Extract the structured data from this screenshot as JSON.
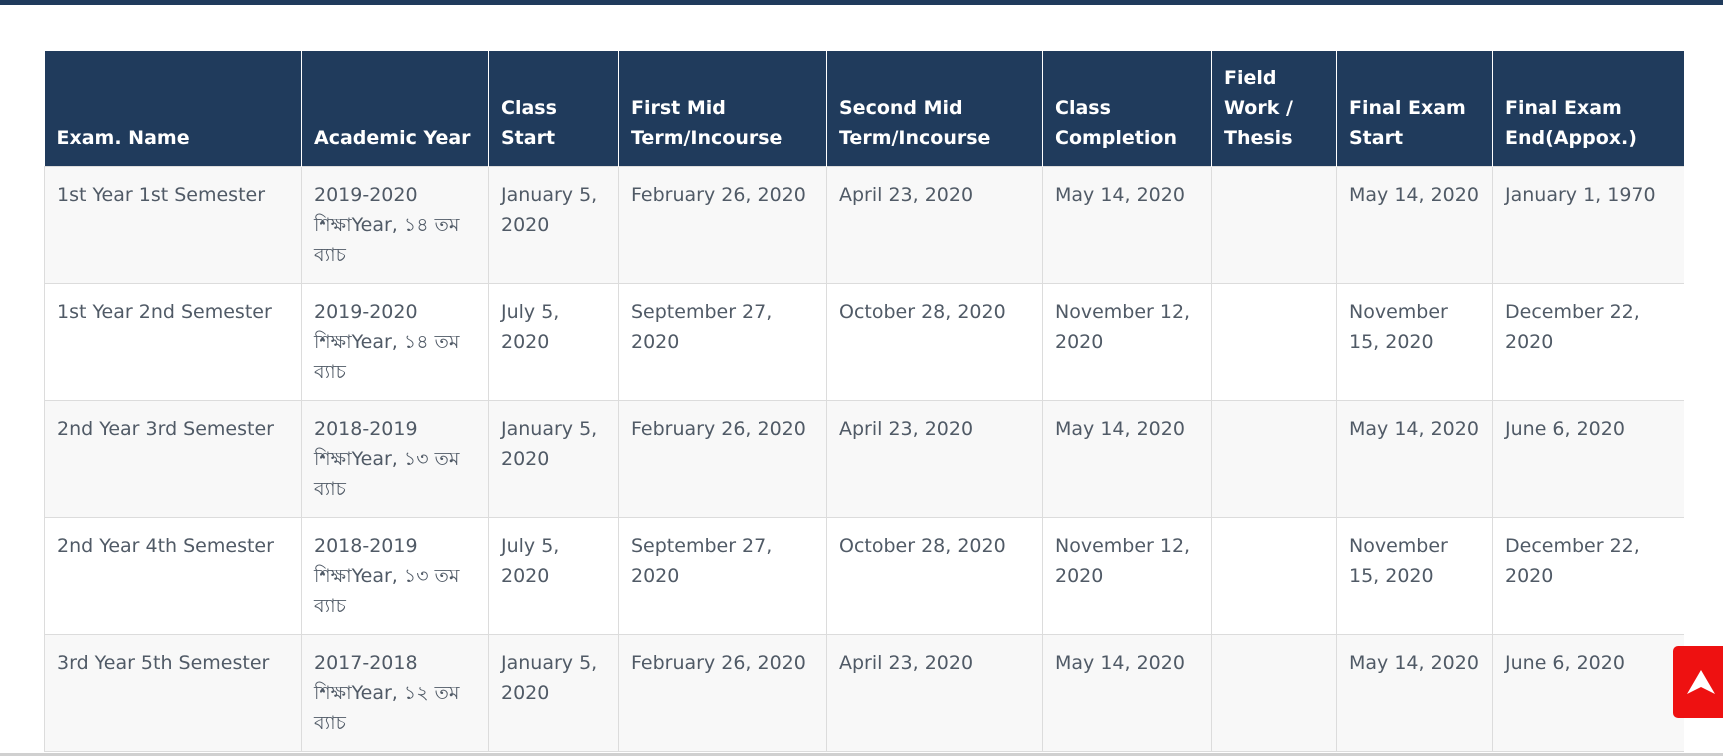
{
  "table": {
    "headers": [
      "Exam. Name",
      "Academic Year",
      "Class Start",
      "First Mid Term/Incourse",
      "Second Mid Term/Incourse",
      "Class Completion",
      "Field Work / Thesis",
      "Final Exam Start",
      "Final Exam End(Appox.)"
    ],
    "rows": [
      [
        "1st Year 1st Semester",
        "2019-2020 শিক্ষাYear, ১৪ তম ব্যাচ",
        "January 5, 2020",
        "February 26, 2020",
        "April 23, 2020",
        "May 14, 2020",
        "",
        "May 14, 2020",
        "January 1, 1970"
      ],
      [
        "1st Year 2nd Semester",
        "2019-2020 শিক্ষাYear, ১৪ তম ব্যাচ",
        "July 5, 2020",
        "September 27, 2020",
        "October 28, 2020",
        "November 12, 2020",
        "",
        "November 15, 2020",
        "December 22, 2020"
      ],
      [
        "2nd Year 3rd Semester",
        "2018-2019 শিক্ষাYear, ১৩ তম ব্যাচ",
        "January 5, 2020",
        "February 26, 2020",
        "April 23, 2020",
        "May 14, 2020",
        "",
        "May 14, 2020",
        "June 6, 2020"
      ],
      [
        "2nd Year 4th Semester",
        "2018-2019 শিক্ষাYear, ১৩ তম ব্যাচ",
        "July 5, 2020",
        "September 27, 2020",
        "October 28, 2020",
        "November 12, 2020",
        "",
        "November 15, 2020",
        "December 22, 2020"
      ],
      [
        "3rd Year 5th Semester",
        "2017-2018 শিক্ষাYear, ১২ তম ব্যাচ",
        "January 5, 2020",
        "February 26, 2020",
        "April 23, 2020",
        "May 14, 2020",
        "",
        "May 14, 2020",
        "June 6, 2020"
      ]
    ]
  },
  "scroll_top_button": {
    "icon": "arrow-up-icon",
    "color": "#ee1111"
  },
  "colors": {
    "header_bg": "#203b5c",
    "header_text": "#ffffff",
    "cell_text": "#505a66"
  }
}
